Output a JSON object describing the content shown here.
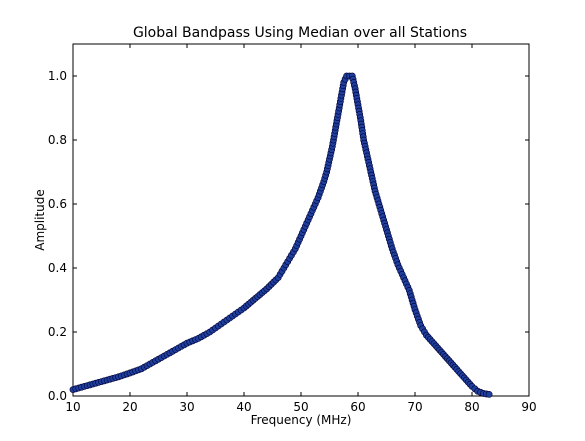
{
  "chart_data": {
    "type": "line",
    "title": "Global Bandpass Using Median over all Stations",
    "xlabel": "Frequency (MHz)",
    "ylabel": "Amplitude",
    "xlim": [
      10,
      90
    ],
    "ylim": [
      0.0,
      1.1
    ],
    "xticks": [
      "10",
      "20",
      "30",
      "40",
      "50",
      "60",
      "70",
      "80",
      "90"
    ],
    "yticks": [
      "0.0",
      "0.2",
      "0.4",
      "0.6",
      "0.8",
      "1.0"
    ],
    "grid": false,
    "marker": "circle",
    "line_color": "#0000ff",
    "marker_fill": "#1f3f9f",
    "series": [
      {
        "x": [
          10.0,
          12.0,
          14.0,
          16.0,
          18.0,
          20.0,
          22.0,
          24.0,
          26.0,
          28.0,
          30.0,
          32.0,
          34.0,
          36.0,
          38.0,
          40.0,
          42.0,
          44.0,
          46.0,
          47.0,
          48.0,
          49.0,
          50.0,
          51.0,
          52.0,
          53.0,
          54.0,
          54.5,
          55.0,
          55.5,
          56.0,
          56.5,
          57.0,
          57.5,
          58.0,
          58.5,
          59.0,
          59.5,
          60.0,
          60.5,
          61.0,
          62.0,
          63.0,
          64.0,
          65.0,
          66.0,
          67.0,
          68.0,
          69.0,
          70.0,
          71.0,
          72.0,
          73.0,
          74.0,
          75.0,
          76.0,
          77.0,
          78.0,
          79.0,
          80.0,
          81.0,
          82.0,
          83.0
        ],
        "y": [
          0.02,
          0.03,
          0.04,
          0.05,
          0.06,
          0.072,
          0.085,
          0.105,
          0.125,
          0.145,
          0.165,
          0.18,
          0.2,
          0.225,
          0.25,
          0.275,
          0.305,
          0.335,
          0.37,
          0.4,
          0.43,
          0.46,
          0.5,
          0.54,
          0.58,
          0.62,
          0.67,
          0.7,
          0.74,
          0.78,
          0.83,
          0.88,
          0.93,
          0.98,
          1.0,
          1.0,
          1.0,
          0.96,
          0.91,
          0.86,
          0.8,
          0.72,
          0.64,
          0.58,
          0.52,
          0.46,
          0.41,
          0.37,
          0.33,
          0.27,
          0.22,
          0.19,
          0.17,
          0.15,
          0.13,
          0.11,
          0.09,
          0.07,
          0.05,
          0.03,
          0.015,
          0.008,
          0.005
        ]
      }
    ]
  }
}
